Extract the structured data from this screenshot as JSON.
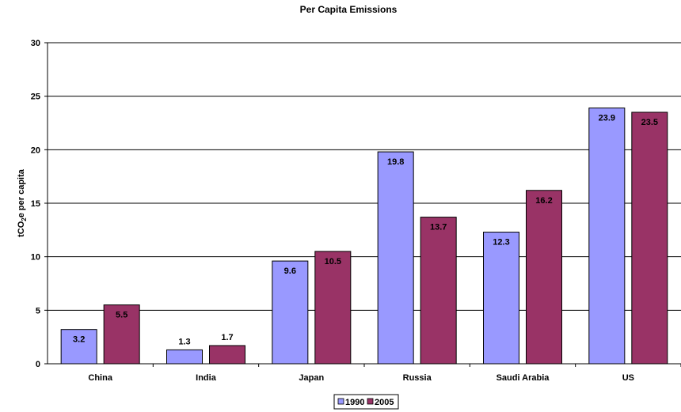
{
  "chart_data": {
    "type": "bar",
    "title": "Per Capita Emissions",
    "xlabel": "",
    "ylabel": "tCO2e per capita",
    "ylabel_parts": [
      "tCO",
      "2",
      "e per capita"
    ],
    "categories": [
      "China",
      "India",
      "Japan",
      "Russia",
      "Saudi Arabia",
      "US"
    ],
    "series": [
      {
        "name": "1990",
        "color": "#9999ff",
        "values": [
          3.2,
          1.3,
          9.6,
          19.8,
          12.3,
          23.9
        ]
      },
      {
        "name": "2005",
        "color": "#993366",
        "values": [
          5.5,
          1.7,
          10.5,
          13.7,
          16.2,
          23.5
        ]
      }
    ],
    "ylim": [
      0,
      30
    ],
    "yticks": [
      0,
      5,
      10,
      15,
      20,
      25,
      30
    ],
    "grid": true,
    "legend_position": "bottom-center"
  }
}
